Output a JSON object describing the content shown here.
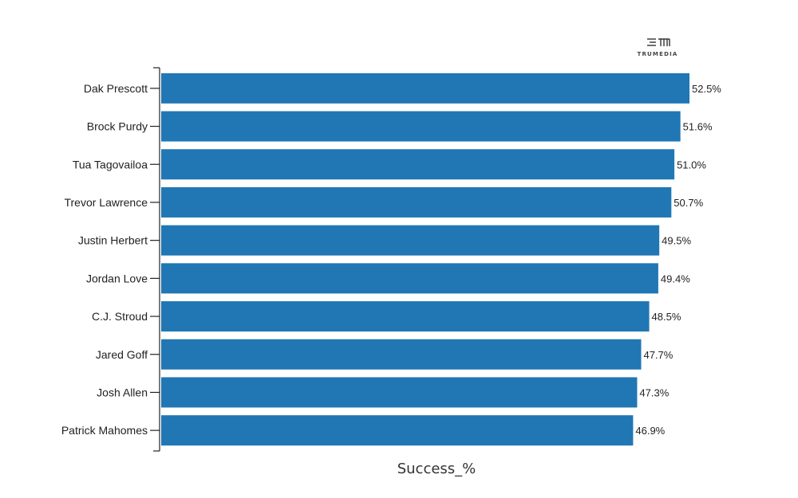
{
  "chart_data": {
    "type": "bar",
    "orientation": "horizontal",
    "categories": [
      "Dak Prescott",
      "Brock Purdy",
      "Tua Tagovailoa",
      "Trevor Lawrence",
      "Justin Herbert",
      "Jordan Love",
      "C.J. Stroud",
      "Jared Goff",
      "Josh Allen",
      "Patrick Mahomes"
    ],
    "values": [
      52.5,
      51.6,
      51.0,
      50.7,
      49.5,
      49.4,
      48.5,
      47.7,
      47.3,
      46.9
    ],
    "value_labels": [
      "52.5%",
      "51.6%",
      "51.0%",
      "50.7%",
      "49.5%",
      "49.4%",
      "48.5%",
      "47.7%",
      "47.3%",
      "46.9%"
    ],
    "xlabel": "Success_%",
    "xlim": [
      0,
      52.5
    ],
    "bar_color": "#2077b4",
    "grid": false,
    "legend": false
  },
  "logo": {
    "text": "TRUMEDIA",
    "icon": "trumedia-logo-icon"
  }
}
